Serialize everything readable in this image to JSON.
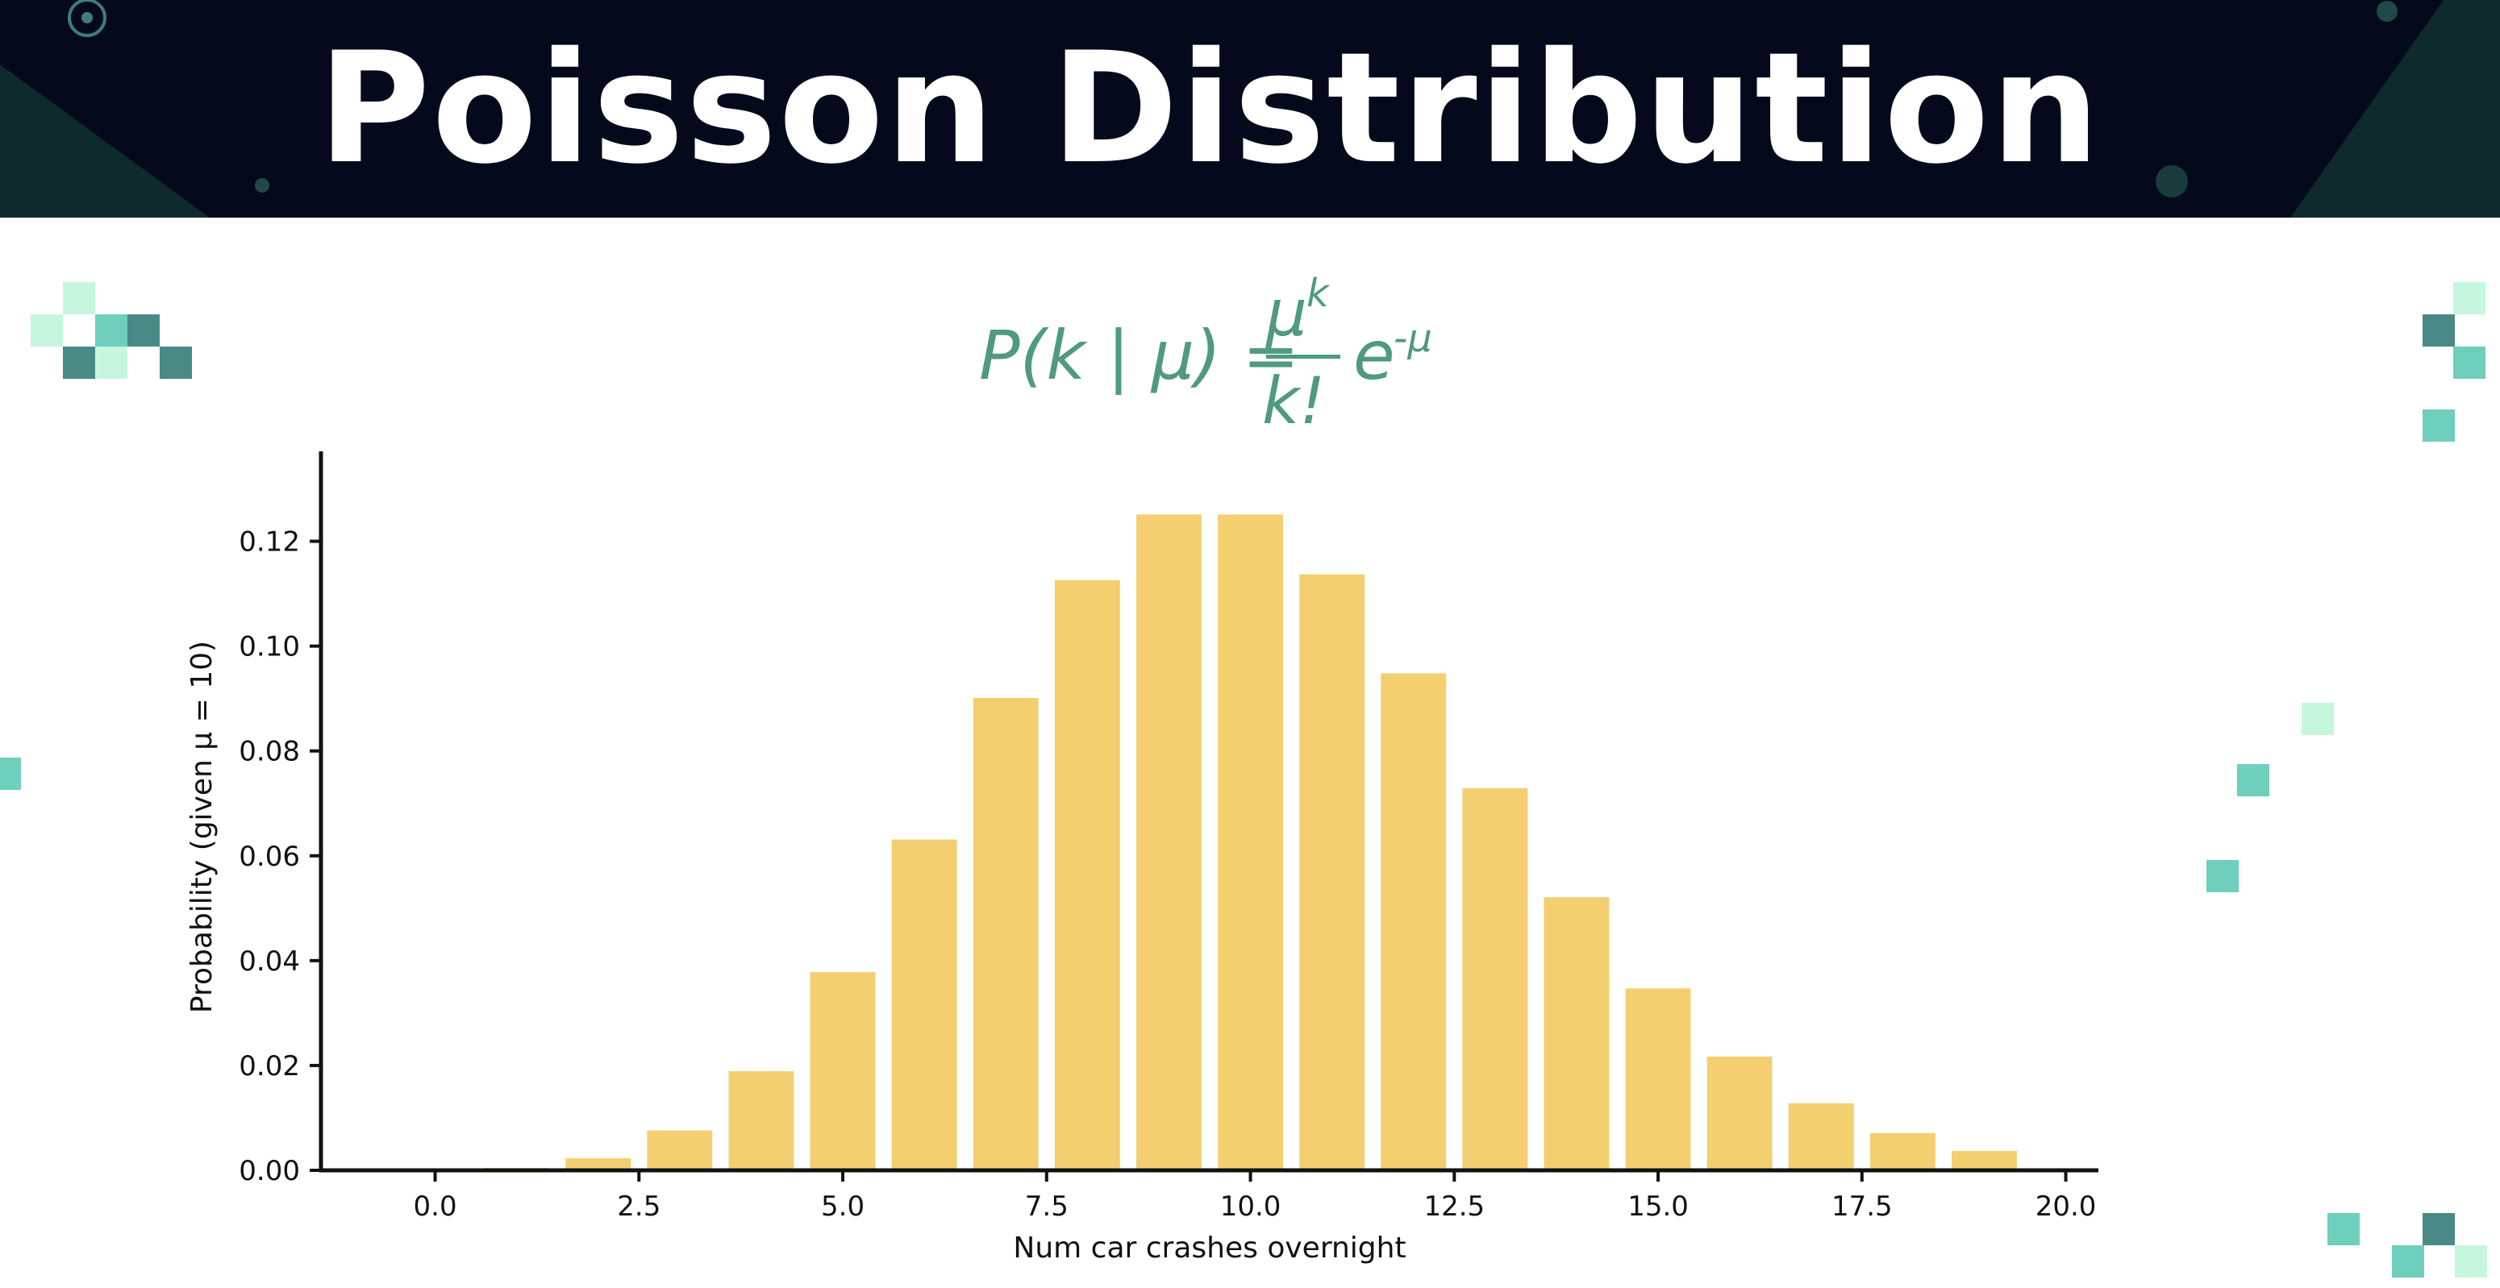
{
  "header": {
    "title": "Poisson Distribution"
  },
  "formula": {
    "lhs": "P(k | μ) =",
    "numerator_base": "μ",
    "numerator_exp": "k",
    "denominator": "k!",
    "factor_base": "e",
    "factor_exp": "-μ"
  },
  "colors": {
    "bar": "#f3cf70",
    "header_bg": "#040a1b",
    "formula": "#4f9a80",
    "accent_teal": "#6ecfbd",
    "accent_dark": "#4a8a86",
    "accent_light": "#c6f6de"
  },
  "chart_data": {
    "type": "bar",
    "title": "",
    "xlabel": "Num car crashes overnight",
    "ylabel": "Probability (given μ = 10)",
    "x": [
      0,
      1,
      2,
      3,
      4,
      5,
      6,
      7,
      8,
      9,
      10,
      11,
      12,
      13,
      14,
      15,
      16,
      17,
      18,
      19
    ],
    "values": [
      5e-05,
      0.00045,
      0.0023,
      0.0076,
      0.0189,
      0.0378,
      0.0631,
      0.0901,
      0.1126,
      0.1251,
      0.1251,
      0.1137,
      0.0948,
      0.0729,
      0.0521,
      0.0347,
      0.0217,
      0.0128,
      0.0071,
      0.0037
    ],
    "xlim": [
      -1.4,
      20.4
    ],
    "ylim": [
      0,
      0.131
    ],
    "xticks": [
      0,
      2.5,
      5,
      7.5,
      10,
      12.5,
      15,
      17.5,
      20
    ],
    "xtick_labels": [
      "0.0",
      "2.5",
      "5.0",
      "7.5",
      "10.0",
      "12.5",
      "15.0",
      "17.5",
      "20.0"
    ],
    "yticks": [
      0,
      0.02,
      0.04,
      0.06,
      0.08,
      0.1,
      0.12
    ],
    "ytick_labels": [
      "0.00",
      "0.02",
      "0.04",
      "0.06",
      "0.08",
      "0.10",
      "0.12"
    ],
    "grid": false,
    "legend": "none"
  }
}
